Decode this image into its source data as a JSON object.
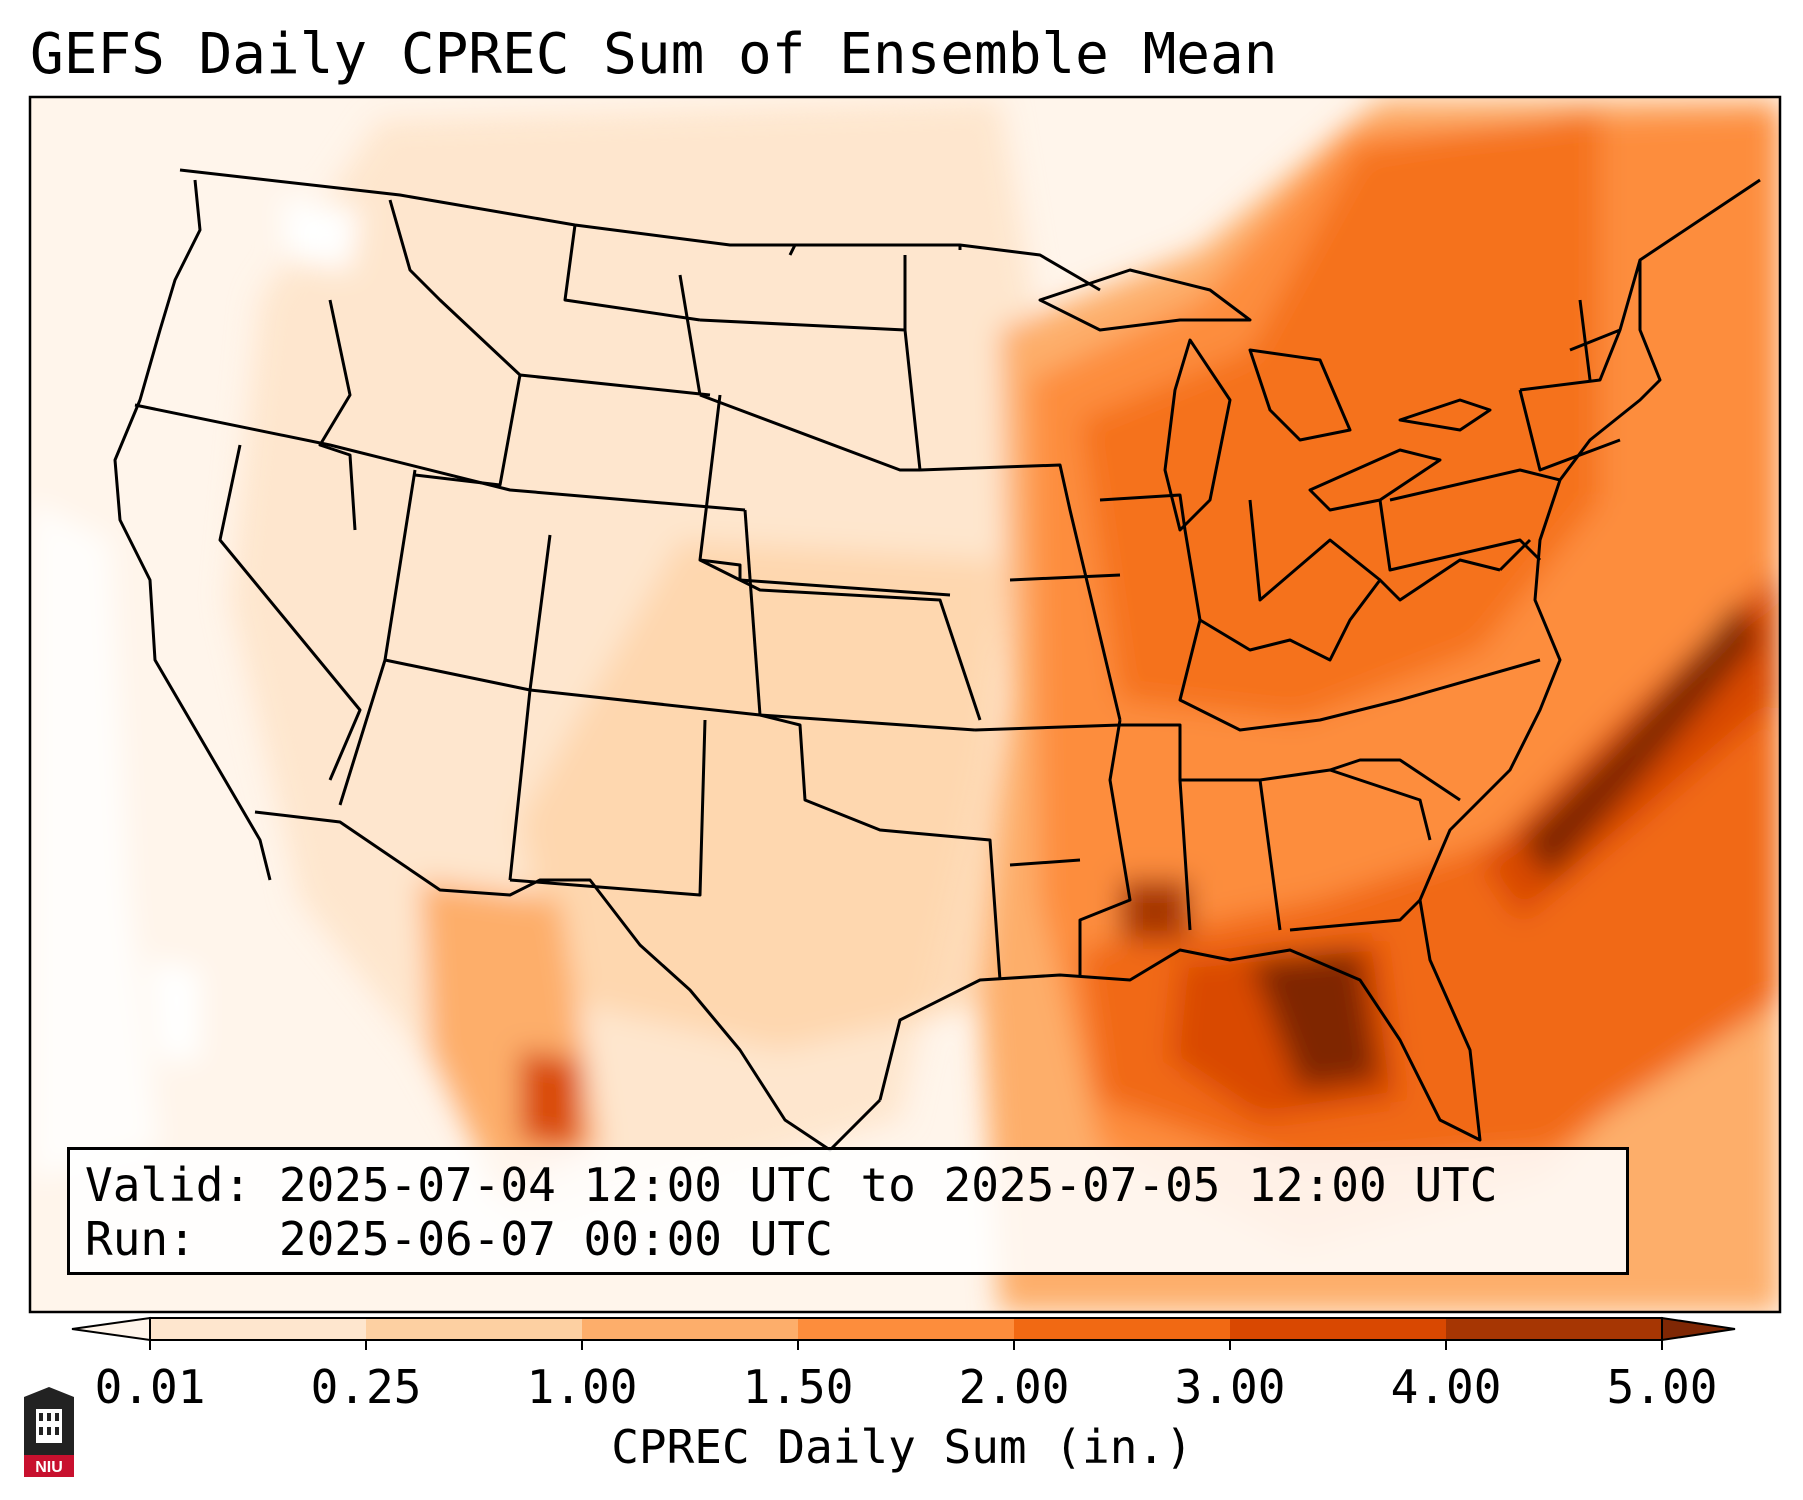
{
  "title": "GEFS Daily CPREC Sum of Ensemble Mean",
  "info": {
    "valid_label": "Valid:",
    "valid_value": "2025-07-04 12:00 UTC to 2025-07-05 12:00 UTC",
    "run_label": "Run:",
    "run_value": "2025-06-07 00:00 UTC"
  },
  "colorbar": {
    "label": "CPREC Daily Sum (in.)",
    "ticks": [
      "0.01",
      "0.25",
      "1.00",
      "1.50",
      "2.00",
      "3.00",
      "4.00",
      "5.00"
    ],
    "colors": [
      "#fff5eb",
      "#fee6ce",
      "#fdd0a2",
      "#fdae6b",
      "#fd8d3c",
      "#f16913",
      "#d94801",
      "#a63603",
      "#7f2704"
    ]
  },
  "map": {
    "projection": "Lambert Conformal",
    "region": "CONUS",
    "border_color": "#000000",
    "max_value_regions": [
      "Gulf of Mexico near Florida panhandle",
      "Atlantic offshore of Carolinas"
    ]
  },
  "logo": {
    "icon": "university-seal-icon",
    "text": "NIU",
    "color": "#c8102e"
  }
}
